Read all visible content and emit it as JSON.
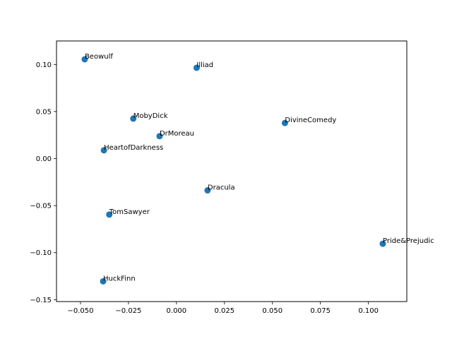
{
  "chart_data": {
    "type": "scatter",
    "title": "",
    "xlabel": "",
    "ylabel": "",
    "xlim": [
      -0.0625,
      0.12
    ],
    "ylim": [
      -0.152,
      0.125
    ],
    "grid": false,
    "legend": null,
    "point_color": "#1f77b4",
    "x_ticks": [
      -0.05,
      -0.025,
      0.0,
      0.025,
      0.05,
      0.075,
      0.1
    ],
    "x_tick_labels": [
      "−0.050",
      "−0.025",
      "0.000",
      "0.025",
      "0.050",
      "0.075",
      "0.100"
    ],
    "y_ticks": [
      -0.15,
      -0.1,
      -0.05,
      0.0,
      0.05,
      0.1
    ],
    "y_tick_labels": [
      "−0.15",
      "−0.10",
      "−0.05",
      "0.00",
      "0.05",
      "0.10"
    ],
    "points": [
      {
        "label": "Beowulf",
        "x": -0.0478,
        "y": 0.1055
      },
      {
        "label": "Illiad",
        "x": 0.0105,
        "y": 0.0965
      },
      {
        "label": "MobyDick",
        "x": -0.0225,
        "y": 0.0425
      },
      {
        "label": "DivineComedy",
        "x": 0.0565,
        "y": 0.0378
      },
      {
        "label": "DrMoreau",
        "x": -0.0088,
        "y": 0.0238
      },
      {
        "label": "HeartofDarkness",
        "x": -0.0378,
        "y": 0.0088
      },
      {
        "label": "Dracula",
        "x": 0.0162,
        "y": -0.0338
      },
      {
        "label": "TomSawyer",
        "x": -0.035,
        "y": -0.0595
      },
      {
        "label": "Pride&Prejudic",
        "x": 0.1075,
        "y": -0.0905
      },
      {
        "label": "HuckFinn",
        "x": -0.0382,
        "y": -0.1305
      }
    ]
  }
}
